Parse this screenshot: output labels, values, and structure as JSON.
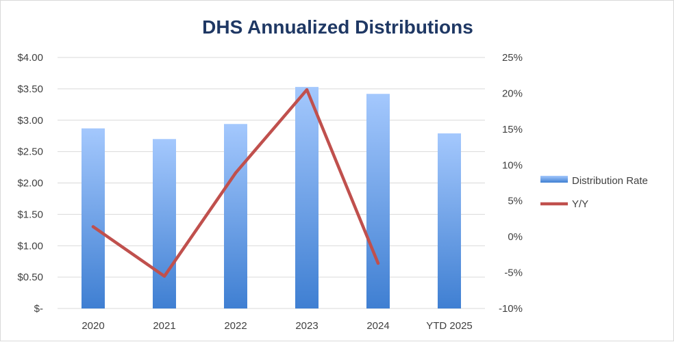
{
  "chart_data": {
    "type": "bar",
    "title": "DHS Annualized Distributions",
    "categories": [
      "2020",
      "2021",
      "2022",
      "2023",
      "2024",
      "YTD 2025"
    ],
    "series": [
      {
        "name": "Distribution Rate",
        "type": "bar",
        "axis": "left",
        "color": "#5b9bd5",
        "values": [
          2.87,
          2.7,
          2.94,
          3.53,
          3.42,
          2.79
        ]
      },
      {
        "name": "Y/Y",
        "type": "line",
        "axis": "right",
        "color": "#c0504d",
        "values": [
          1.4,
          -5.5,
          8.9,
          20.5,
          -3.7,
          null
        ]
      }
    ],
    "left_axis": {
      "ylim": [
        0,
        4.0
      ],
      "ticks": [
        0,
        0.5,
        1.0,
        1.5,
        2.0,
        2.5,
        3.0,
        3.5,
        4.0
      ],
      "tick_labels": [
        "$-",
        "$0.50",
        "$1.00",
        "$1.50",
        "$2.00",
        "$2.50",
        "$3.00",
        "$3.50",
        "$4.00"
      ]
    },
    "right_axis": {
      "ylim": [
        -10,
        25
      ],
      "ticks": [
        -10,
        -5,
        0,
        5,
        10,
        15,
        20,
        25
      ],
      "tick_labels": [
        "-10%",
        "-5%",
        "0%",
        "5%",
        "10%",
        "15%",
        "20%",
        "25%"
      ]
    },
    "grid": true,
    "legend_position": "right"
  }
}
